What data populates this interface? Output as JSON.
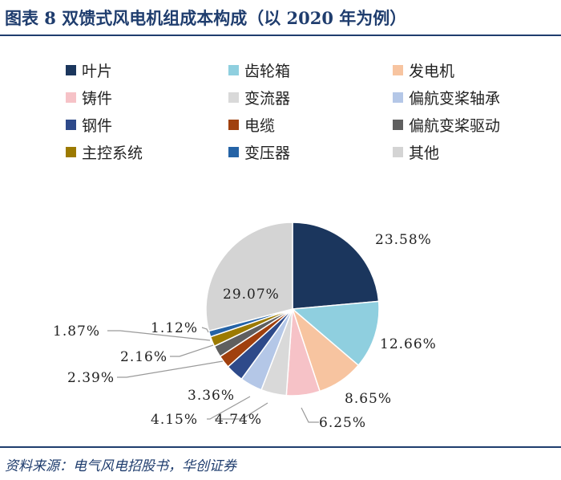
{
  "figure": {
    "title": "图表 8   双馈式风电机组成本构成（以 2020 年为例）",
    "source": "资料来源：电气风电招股书，华创证券"
  },
  "chart_data": {
    "type": "pie",
    "title": "双馈式风电机组成本构成（以 2020 年为例）",
    "legend_position": "top",
    "slices": [
      {
        "name": "叶片",
        "value": 23.58,
        "label": "23.58%",
        "color": "#1b365d"
      },
      {
        "name": "齿轮箱",
        "value": 12.66,
        "label": "12.66%",
        "color": "#8fcfdf"
      },
      {
        "name": "发电机",
        "value": 8.65,
        "label": "8.65%",
        "color": "#f7c4a0"
      },
      {
        "name": "铸件",
        "value": 6.25,
        "label": "6.25%",
        "color": "#f6c2c7"
      },
      {
        "name": "变流器",
        "value": 4.74,
        "label": "4.74%",
        "color": "#d9d9d9"
      },
      {
        "name": "偏航变桨轴承",
        "value": 4.15,
        "label": "4.15%",
        "color": "#b4c7e7"
      },
      {
        "name": "钢件",
        "value": 3.36,
        "label": "3.36%",
        "color": "#2e4a8a"
      },
      {
        "name": "电缆",
        "value": 2.39,
        "label": "2.39%",
        "color": "#a0400e"
      },
      {
        "name": "偏航变桨驱动",
        "value": 2.16,
        "label": "2.16%",
        "color": "#5f5f5f"
      },
      {
        "name": "主控系统",
        "value": 1.87,
        "label": "1.87%",
        "color": "#9c7a00"
      },
      {
        "name": "变压器",
        "value": 1.12,
        "label": "1.12%",
        "color": "#2563a6"
      },
      {
        "name": "其他",
        "value": 29.07,
        "label": "29.07%",
        "color": "#d4d4d4"
      }
    ]
  }
}
